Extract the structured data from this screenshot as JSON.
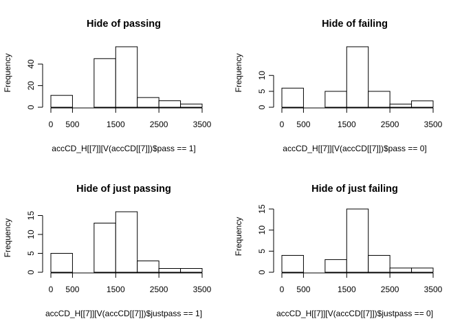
{
  "chart_data": [
    {
      "type": "bar",
      "title": "Hide of passing",
      "xlabel": "accCD_H[[7]][V(accCD[[7]])$pass == 1]",
      "ylabel": "Frequency",
      "bin_edges": [
        0,
        500,
        1000,
        1500,
        2000,
        2500,
        3000,
        3500
      ],
      "values": [
        11,
        0,
        45,
        56,
        9,
        6,
        3
      ],
      "x_ticks": [
        0,
        500,
        1500,
        2500,
        3500
      ],
      "y_ticks": [
        0,
        20,
        40
      ],
      "xlim": [
        0,
        3500
      ],
      "ylim": [
        0,
        56
      ]
    },
    {
      "type": "bar",
      "title": "Hide of failing",
      "xlabel": "accCD_H[[7]][V(accCD[[7]])$pass == 0]",
      "ylabel": "Frequency",
      "bin_edges": [
        0,
        500,
        1000,
        1500,
        2000,
        2500,
        3000,
        3500
      ],
      "values": [
        6,
        0,
        5,
        19,
        5,
        1,
        2
      ],
      "x_ticks": [
        0,
        500,
        1500,
        2500,
        3500
      ],
      "y_ticks": [
        0,
        5,
        10
      ],
      "xlim": [
        0,
        3500
      ],
      "ylim": [
        0,
        19
      ]
    },
    {
      "type": "bar",
      "title": "Hide of just passing",
      "xlabel": "accCD_H[[7]][V(accCD[[7]])$justpass == 1]",
      "ylabel": "Frequency",
      "bin_edges": [
        0,
        500,
        1000,
        1500,
        2000,
        2500,
        3000,
        3500
      ],
      "values": [
        5,
        0,
        13,
        16,
        3,
        1,
        1
      ],
      "x_ticks": [
        0,
        500,
        1500,
        2500,
        3500
      ],
      "y_ticks": [
        0,
        5,
        10,
        15
      ],
      "xlim": [
        0,
        3500
      ],
      "ylim": [
        0,
        16
      ]
    },
    {
      "type": "bar",
      "title": "Hide of just failing",
      "xlabel": "accCD_H[[7]][V(accCD[[7]])$justpass == 0]",
      "ylabel": "Frequency",
      "bin_edges": [
        0,
        500,
        1000,
        1500,
        2000,
        2500,
        3000,
        3500
      ],
      "values": [
        4,
        0,
        3,
        15,
        4,
        1,
        1
      ],
      "x_ticks": [
        0,
        500,
        1500,
        2500,
        3500
      ],
      "y_ticks": [
        0,
        5,
        10,
        15
      ],
      "xlim": [
        0,
        3500
      ],
      "ylim": [
        0,
        15
      ]
    }
  ]
}
